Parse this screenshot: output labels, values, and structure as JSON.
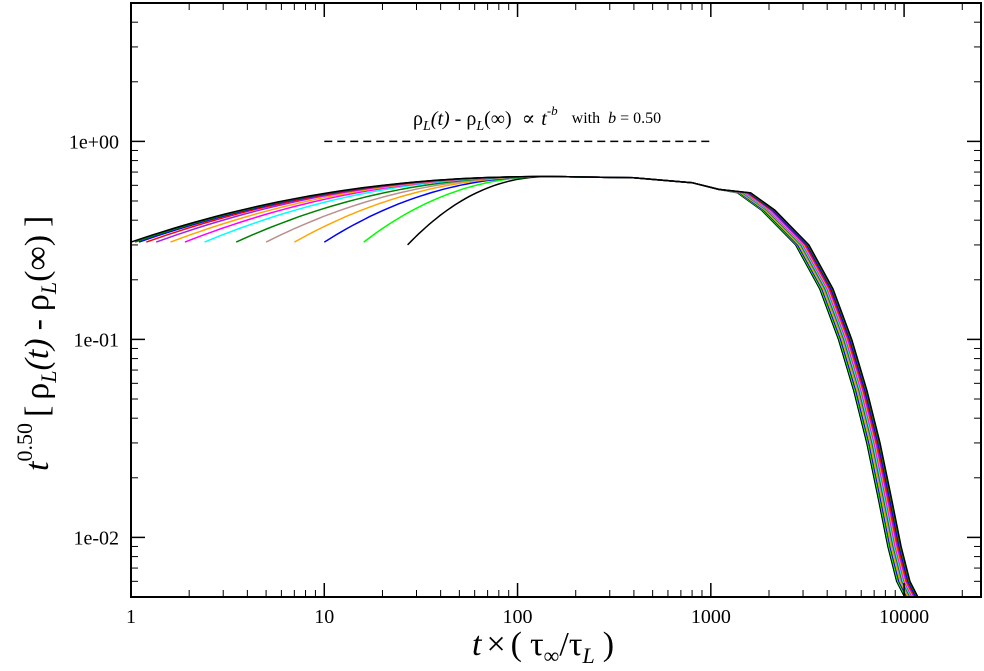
{
  "chart_data": {
    "type": "line",
    "title": "",
    "xscale": "log",
    "yscale": "log",
    "xlim": [
      1,
      25000
    ],
    "ylim": [
      0.005,
      5
    ],
    "grid": false,
    "legend": "none",
    "xlabel": {
      "t": "t",
      "times": "×",
      "open": "(",
      "tau": "τ",
      "inf": "∞",
      "slash": "/",
      "tau2": "τ",
      "L": "L",
      "close": ")"
    },
    "ylabel": {
      "t": "t",
      "exp": "0.50",
      "bracket_open": "[",
      "rho1": "ρ",
      "L1": "L",
      "arg1": "(t)",
      "minus": "-",
      "rho2": "ρ",
      "L2": "L",
      "arg2": "(∞)",
      "bracket_close": "]"
    },
    "x_ticks": [
      {
        "value": 1,
        "label": "1"
      },
      {
        "value": 10,
        "label": "10"
      },
      {
        "value": 100,
        "label": "100"
      },
      {
        "value": 1000,
        "label": "1000"
      },
      {
        "value": 10000,
        "label": "10000"
      }
    ],
    "y_ticks": [
      {
        "value": 0.01,
        "label": "1e-02"
      },
      {
        "value": 0.1,
        "label": "1e-01"
      },
      {
        "value": 1,
        "label": "1e+00"
      }
    ],
    "annotation": {
      "rho1": "ρ",
      "L1": "L",
      "arg1": "(t)",
      "minus": " - ",
      "rho2": "ρ",
      "L2": "L",
      "arg2": "(∞)",
      "prop": "∝",
      "t": "t",
      "exp": "-b",
      "with": "with",
      "b": "b",
      "eq": " = 0.50"
    },
    "reference_line": {
      "style": "dashed",
      "color": "#000000",
      "x": [
        10,
        1000
      ],
      "y": [
        1.0,
        1.0
      ]
    },
    "plateau": 0.665,
    "decay_tail": [
      [
        1500,
        0.55
      ],
      [
        2000,
        0.45
      ],
      [
        3000,
        0.3
      ],
      [
        4000,
        0.18
      ],
      [
        5000,
        0.1
      ],
      [
        6000,
        0.055
      ],
      [
        7000,
        0.03
      ],
      [
        8000,
        0.016
      ],
      [
        9000,
        0.009
      ],
      [
        10000,
        0.006
      ],
      [
        11000,
        0.005
      ]
    ],
    "series": [
      {
        "color": "#000000",
        "x0": 27,
        "y0": 0.3
      },
      {
        "color": "#00ff00",
        "x0": 16,
        "y0": 0.31
      },
      {
        "color": "#0000ff",
        "x0": 10,
        "y0": 0.31
      },
      {
        "color": "#ffa500",
        "x0": 7,
        "y0": 0.31
      },
      {
        "color": "#bc8f8f",
        "x0": 5,
        "y0": 0.31
      },
      {
        "color": "#008000",
        "x0": 3.5,
        "y0": 0.31
      },
      {
        "color": "#00ffff",
        "x0": 2.4,
        "y0": 0.31
      },
      {
        "color": "#ff00ff",
        "x0": 1.9,
        "y0": 0.31
      },
      {
        "color": "#ffa500",
        "x0": 1.6,
        "y0": 0.31
      },
      {
        "color": "#a020f0",
        "x0": 1.35,
        "y0": 0.31
      },
      {
        "color": "#ff0000",
        "x0": 1.2,
        "y0": 0.31
      },
      {
        "color": "#0000ff",
        "x0": 1.1,
        "y0": 0.31
      },
      {
        "color": "#008000",
        "x0": 1.05,
        "y0": 0.31
      },
      {
        "color": "#000000",
        "x0": 1.0,
        "y0": 0.31
      }
    ]
  }
}
